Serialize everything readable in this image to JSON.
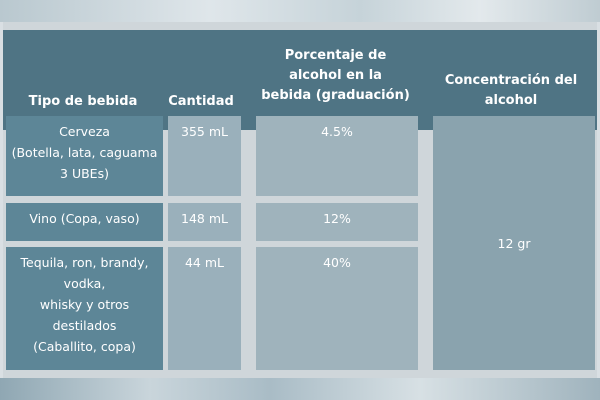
{
  "table": {
    "headers": {
      "tipo": "Tipo de bebida",
      "cantidad": "Cantidad",
      "porcentaje_l1": "Porcentaje de",
      "porcentaje_l2": "alcohol en la",
      "porcentaje_l3": "bebida (graduación)",
      "concentracion_l1": "Concentración del",
      "concentracion_l2": "alcohol"
    },
    "rows": [
      {
        "tipo_lines": [
          "Cerveza",
          "(Botella, lata, caguama",
          "3 UBEs)"
        ],
        "cantidad": "355 mL",
        "porcentaje": "4.5%"
      },
      {
        "tipo_lines": [
          "Vino (Copa, vaso)"
        ],
        "cantidad": "148 mL",
        "porcentaje": "12%"
      },
      {
        "tipo_lines": [
          "Tequila, ron, brandy,",
          "vodka,",
          "whisky y otros",
          "destilados",
          "(Caballito, copa)"
        ],
        "cantidad": "44 mL",
        "porcentaje": "40%"
      }
    ],
    "concentracion": "12 gr"
  }
}
